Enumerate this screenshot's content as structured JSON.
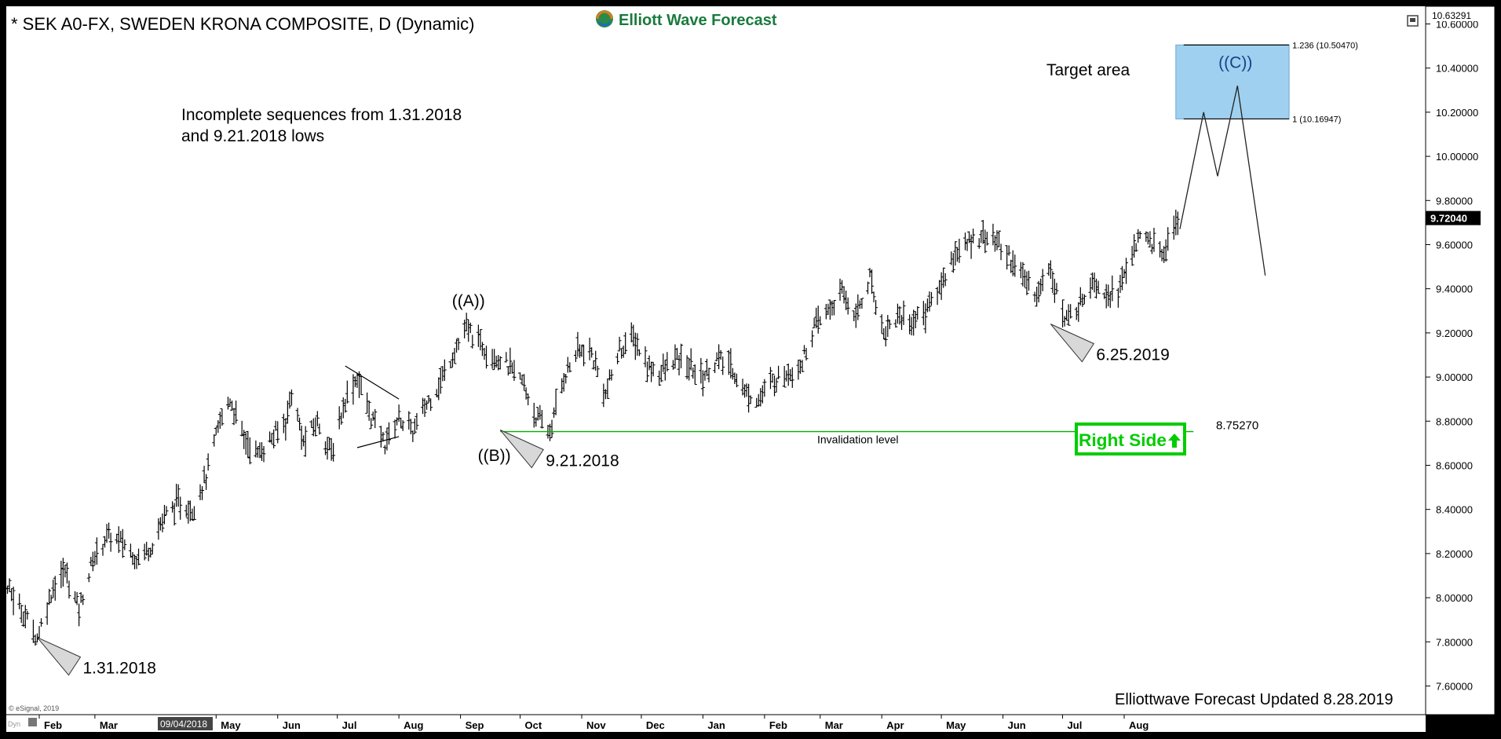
{
  "chart_data": {
    "type": "ohlc",
    "title": "* SEK A0-FX, SWEDEN KRONA COMPOSITE, D (Dynamic)",
    "logo_text": "Elliott Wave Forecast",
    "updated_text": "Elliottwave Forecast Updated 8.28.2019",
    "copyright": "© eSignal, 2019",
    "dyn_label": "Dyn",
    "x_highlight_label": "09/04/2018",
    "ylim": [
      7.47,
      10.68
    ],
    "y_ticks": [
      "10.60000",
      "10.40000",
      "10.20000",
      "10.00000",
      "9.80000",
      "9.60000",
      "9.40000",
      "9.20000",
      "9.00000",
      "8.80000",
      "8.60000",
      "8.40000",
      "8.20000",
      "8.00000",
      "7.80000",
      "7.60000"
    ],
    "y_tick_values": [
      10.6,
      10.4,
      10.2,
      10.0,
      9.8,
      9.6,
      9.4,
      9.2,
      9.0,
      8.8,
      8.6,
      8.4,
      8.2,
      8.0,
      7.8,
      7.6
    ],
    "top_price_label": "10.63291",
    "last_price_label": "9.72040",
    "last_price": 9.7204,
    "x_months": [
      {
        "label": "Feb",
        "date": "2018-02-01"
      },
      {
        "label": "Mar",
        "date": "2018-03-01"
      },
      {
        "label": "May",
        "date": "2018-05-01"
      },
      {
        "label": "Jun",
        "date": "2018-06-01"
      },
      {
        "label": "Jul",
        "date": "2018-07-01"
      },
      {
        "label": "Aug",
        "date": "2018-08-01"
      },
      {
        "label": "Sep",
        "date": "2018-09-01"
      },
      {
        "label": "Oct",
        "date": "2018-10-01"
      },
      {
        "label": "Nov",
        "date": "2018-11-01"
      },
      {
        "label": "Dec",
        "date": "2018-12-01"
      },
      {
        "label": "Jan",
        "date": "2019-01-01"
      },
      {
        "label": "Feb",
        "date": "2019-02-01"
      },
      {
        "label": "Mar",
        "date": "2019-03-01"
      },
      {
        "label": "Apr",
        "date": "2019-04-01"
      },
      {
        "label": "May",
        "date": "2019-05-01"
      },
      {
        "label": "Jun",
        "date": "2019-06-01"
      },
      {
        "label": "Jul",
        "date": "2019-07-01"
      },
      {
        "label": "Aug",
        "date": "2019-08-01"
      }
    ],
    "price_path": [
      [
        "2018-01-03",
        8.27
      ],
      [
        "2018-01-10",
        8.12
      ],
      [
        "2018-01-17",
        8.03
      ],
      [
        "2018-01-24",
        7.93
      ],
      [
        "2018-01-31",
        7.82
      ],
      [
        "2018-02-08",
        8.05
      ],
      [
        "2018-02-14",
        8.12
      ],
      [
        "2018-02-21",
        7.95
      ],
      [
        "2018-02-28",
        8.17
      ],
      [
        "2018-03-07",
        8.28
      ],
      [
        "2018-03-15",
        8.25
      ],
      [
        "2018-03-22",
        8.18
      ],
      [
        "2018-03-29",
        8.23
      ],
      [
        "2018-04-05",
        8.37
      ],
      [
        "2018-04-12",
        8.43
      ],
      [
        "2018-04-19",
        8.4
      ],
      [
        "2018-04-26",
        8.55
      ],
      [
        "2018-05-03",
        8.8
      ],
      [
        "2018-05-08",
        8.9
      ],
      [
        "2018-05-15",
        8.72
      ],
      [
        "2018-05-22",
        8.65
      ],
      [
        "2018-05-29",
        8.72
      ],
      [
        "2018-06-05",
        8.8
      ],
      [
        "2018-06-08",
        8.93
      ],
      [
        "2018-06-14",
        8.7
      ],
      [
        "2018-06-21",
        8.8
      ],
      [
        "2018-06-28",
        8.65
      ],
      [
        "2018-07-05",
        8.9
      ],
      [
        "2018-07-11",
        9.0
      ],
      [
        "2018-07-18",
        8.82
      ],
      [
        "2018-07-25",
        8.7
      ],
      [
        "2018-08-01",
        8.82
      ],
      [
        "2018-08-08",
        8.75
      ],
      [
        "2018-08-15",
        8.88
      ],
      [
        "2018-08-22",
        8.98
      ],
      [
        "2018-08-29",
        9.12
      ],
      [
        "2018-09-04",
        9.22
      ],
      [
        "2018-09-11",
        9.15
      ],
      [
        "2018-09-18",
        9.1
      ],
      [
        "2018-09-25",
        9.05
      ],
      [
        "2018-10-02",
        8.98
      ],
      [
        "2018-10-09",
        8.82
      ],
      [
        "2018-10-16",
        8.75
      ],
      [
        "2018-10-23",
        9.0
      ],
      [
        "2018-10-30",
        9.12
      ],
      [
        "2018-11-06",
        9.1
      ],
      [
        "2018-11-13",
        8.92
      ],
      [
        "2018-11-20",
        9.12
      ],
      [
        "2018-11-27",
        9.18
      ],
      [
        "2018-12-04",
        9.05
      ],
      [
        "2018-12-11",
        9.02
      ],
      [
        "2018-12-18",
        9.08
      ],
      [
        "2018-12-25",
        9.05
      ],
      [
        "2019-01-01",
        9.0
      ],
      [
        "2019-01-08",
        9.08
      ],
      [
        "2019-01-15",
        9.05
      ],
      [
        "2019-01-22",
        8.93
      ],
      [
        "2019-01-29",
        8.9
      ],
      [
        "2019-02-05",
        8.98
      ],
      [
        "2019-02-12",
        9.02
      ],
      [
        "2019-02-19",
        9.05
      ],
      [
        "2019-02-26",
        9.22
      ],
      [
        "2019-03-05",
        9.3
      ],
      [
        "2019-03-12",
        9.38
      ],
      [
        "2019-03-19",
        9.28
      ],
      [
        "2019-03-26",
        9.45
      ],
      [
        "2019-04-02",
        9.2
      ],
      [
        "2019-04-09",
        9.28
      ],
      [
        "2019-04-16",
        9.25
      ],
      [
        "2019-04-23",
        9.3
      ],
      [
        "2019-04-30",
        9.4
      ],
      [
        "2019-05-07",
        9.55
      ],
      [
        "2019-05-14",
        9.6
      ],
      [
        "2019-05-21",
        9.65
      ],
      [
        "2019-05-28",
        9.62
      ],
      [
        "2019-06-04",
        9.55
      ],
      [
        "2019-06-11",
        9.45
      ],
      [
        "2019-06-18",
        9.38
      ],
      [
        "2019-06-25",
        9.5
      ],
      [
        "2019-07-02",
        9.25
      ],
      [
        "2019-07-09",
        9.32
      ],
      [
        "2019-07-16",
        9.45
      ],
      [
        "2019-07-23",
        9.38
      ],
      [
        "2019-07-30",
        9.4
      ],
      [
        "2019-08-06",
        9.6
      ],
      [
        "2019-08-13",
        9.63
      ],
      [
        "2019-08-20",
        9.55
      ],
      [
        "2019-08-28",
        9.72
      ]
    ],
    "projection": [
      [
        "2019-08-29",
        9.67
      ],
      [
        "2019-09-10",
        10.2
      ],
      [
        "2019-09-17",
        9.91
      ],
      [
        "2019-09-27",
        10.32
      ],
      [
        "2019-10-11",
        9.46
      ]
    ],
    "target_box": {
      "x_start": "2019-08-27",
      "x_end": "2019-10-23",
      "y_low": 10.16947,
      "y_high": 10.5047
    },
    "target_area_label": "Target area",
    "fib_levels": [
      {
        "label": "1.236 (10.50470)",
        "value": 10.5047
      },
      {
        "label": "1 (10.16947)",
        "value": 10.16947
      }
    ],
    "invalidation": {
      "value": 8.7527,
      "value_label": "8.75270",
      "label": "Invalidation level",
      "x_start": "2018-09-21",
      "x_end": "2019-08-26"
    },
    "triangle_top": [
      [
        "2018-07-05",
        9.05
      ],
      [
        "2018-08-01",
        8.9
      ]
    ],
    "triangle_bottom": [
      [
        "2018-07-11",
        8.68
      ],
      [
        "2018-08-01",
        8.73
      ]
    ],
    "wave_labels": [
      {
        "text": "((A))",
        "date": "2018-09-05",
        "y": 9.32
      },
      {
        "text": "((B))",
        "date": "2018-09-18",
        "y": 8.62
      },
      {
        "text": "((C))",
        "date": "2019-09-26",
        "y": 10.4
      }
    ],
    "pivot_markers": [
      {
        "date": "2018-01-31",
        "price": 7.82,
        "label": "1.31.2018"
      },
      {
        "date": "2018-09-21",
        "price": 8.76,
        "label": "9.21.2018"
      },
      {
        "date": "2019-06-25",
        "price": 9.24,
        "label": "6.25.2019"
      }
    ],
    "annotation_text": [
      "Incomplete sequences from 1.31.2018",
      "and 9.21.2018 lows"
    ],
    "badge_text": "Right Side",
    "badge_color": "#00cc00",
    "target_color": "#9fd0ef",
    "invalidation_color": "#00b000"
  }
}
